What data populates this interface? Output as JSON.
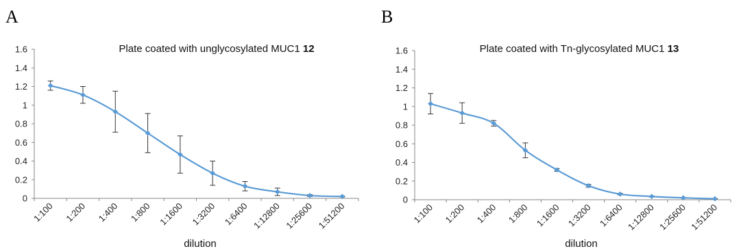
{
  "panels": [
    {
      "letter": "A",
      "chart_data": {
        "type": "line",
        "title": "Plate coated with unglycosylated MUC1",
        "title_bold": "12",
        "xlabel": "dilution",
        "ylabel": "",
        "categories": [
          "1:100",
          "1:200",
          "1:400",
          "1:800",
          "1:1600",
          "1:3200",
          "1:6400",
          "1:12800",
          "1:25600",
          "1:51200"
        ],
        "series": [
          {
            "values": [
              1.21,
              1.11,
              0.93,
              0.7,
              0.47,
              0.27,
              0.13,
              0.07,
              0.03,
              0.02
            ],
            "errors": [
              0.05,
              0.09,
              0.22,
              0.21,
              0.2,
              0.13,
              0.05,
              0.04,
              0.01,
              0.005
            ],
            "color": "#5b9bd5"
          }
        ],
        "yticks": [
          "0",
          "0.2",
          "0.4",
          "0.6",
          "0.8",
          "1",
          "1.2",
          "1.4",
          "1.6"
        ],
        "ylim": [
          0,
          1.6
        ],
        "grid": false,
        "legend": "none"
      }
    },
    {
      "letter": "B",
      "chart_data": {
        "type": "line",
        "title": "Plate coated with Tn-glycosylated MUC1",
        "title_bold": "13",
        "xlabel": "dilution",
        "ylabel": "",
        "categories": [
          "1:100",
          "1:200",
          "1:400",
          "1:800",
          "1:1600",
          "1:3200",
          "1:6400",
          "1:12800",
          "1:25600",
          "1:51200"
        ],
        "series": [
          {
            "values": [
              1.03,
              0.93,
              0.82,
              0.53,
              0.32,
              0.15,
              0.06,
              0.035,
              0.02,
              0.01
            ],
            "errors": [
              0.11,
              0.11,
              0.03,
              0.08,
              0.015,
              0.015,
              0.008,
              0.005,
              0.004,
              0.003
            ],
            "color": "#5b9bd5"
          }
        ],
        "yticks": [
          "0",
          "0.2",
          "0.4",
          "0.6",
          "0.8",
          "1",
          "1.2",
          "1.4",
          "1.6"
        ],
        "ylim": [
          0,
          1.6
        ],
        "grid": false,
        "legend": "none"
      }
    }
  ]
}
